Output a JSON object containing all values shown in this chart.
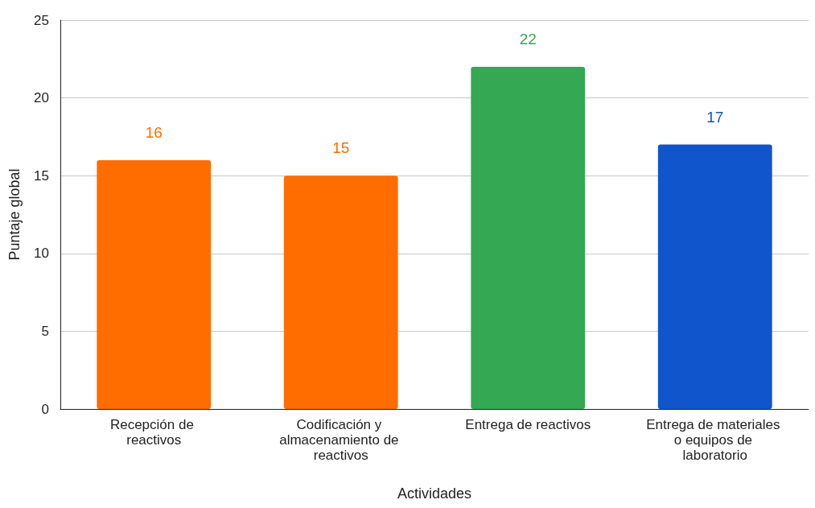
{
  "chart_data": {
    "type": "bar",
    "xlabel": "Actividades",
    "ylabel": "Puntaje global",
    "categories": [
      "Recepción de reactivos",
      "Codificación y almacenamiento de reactivos",
      "Entrega de reactivos",
      "Entrega de materiales o equipos de laboratorio"
    ],
    "values": [
      16,
      15,
      22,
      17
    ],
    "colors": [
      "#ff6d01",
      "#ff6d01",
      "#34a853",
      "#1155cc"
    ],
    "ylim": [
      0,
      25
    ],
    "yticks": [
      0,
      5,
      10,
      15,
      20,
      25
    ],
    "grid": "y",
    "data_labels": true
  }
}
